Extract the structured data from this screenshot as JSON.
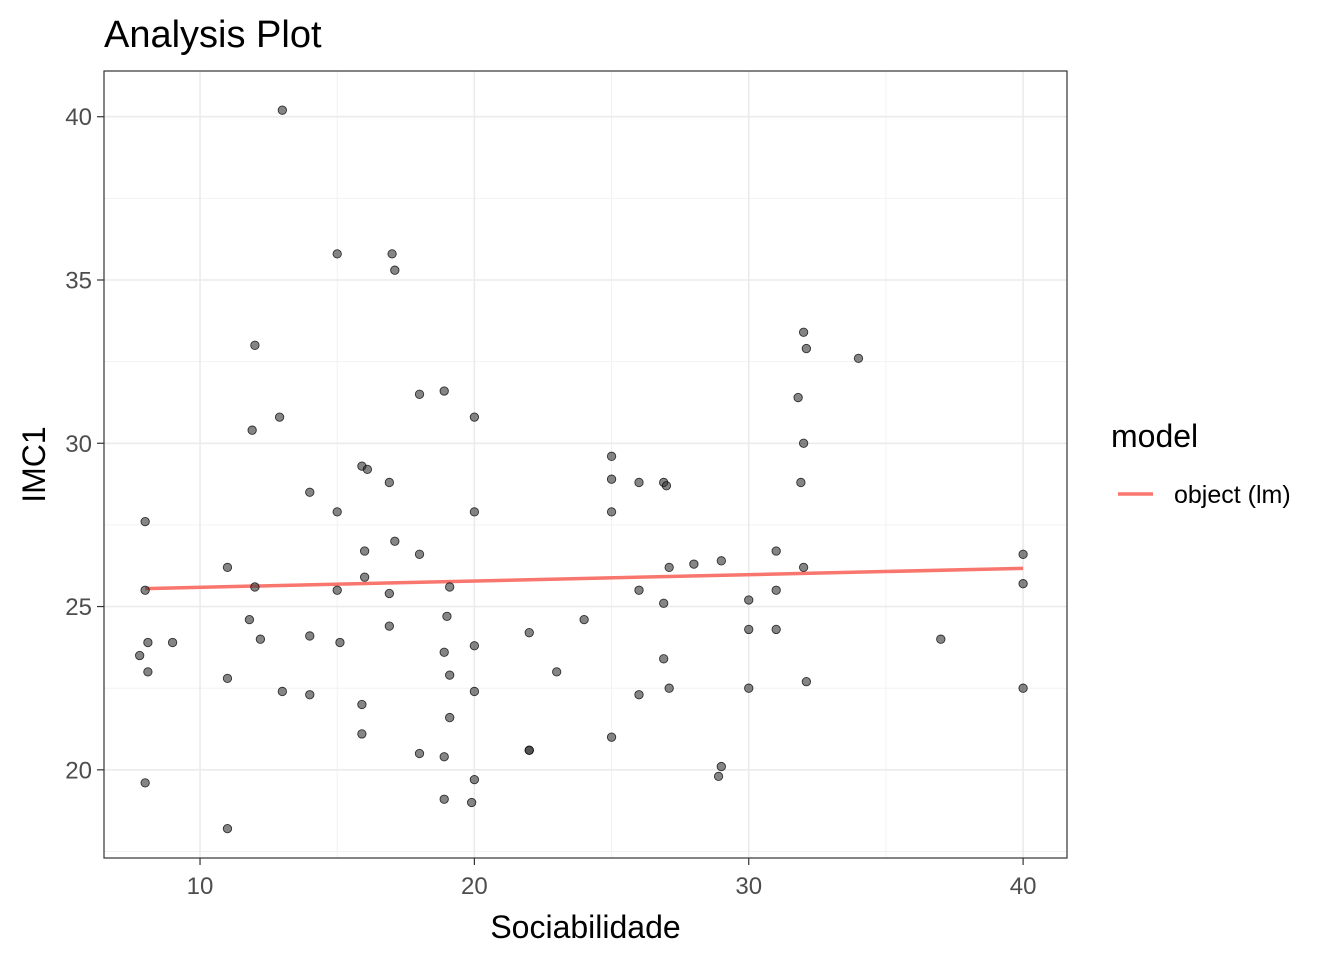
{
  "chart_data": {
    "type": "scatter",
    "title": "Analysis Plot",
    "xlabel": "Sociabilidade",
    "ylabel": "IMC1",
    "xlim": [
      6.5,
      41.6
    ],
    "ylim": [
      17.3,
      41.4
    ],
    "x_ticks": [
      10,
      20,
      30,
      40
    ],
    "y_ticks": [
      20,
      25,
      30,
      35,
      40
    ],
    "x_tick_labels": [
      "10",
      "20",
      "30",
      "40"
    ],
    "y_tick_labels": [
      "20",
      "25",
      "30",
      "35",
      "40"
    ],
    "grid": true,
    "legend": {
      "title": "model",
      "placement": "right",
      "entries": [
        {
          "label": "object (lm)",
          "color": "#F8766D"
        }
      ]
    },
    "point_color": "#333333",
    "points": [
      {
        "x": 7.8,
        "y": 23.5
      },
      {
        "x": 8.0,
        "y": 27.6
      },
      {
        "x": 8.0,
        "y": 25.5
      },
      {
        "x": 8.1,
        "y": 23.9
      },
      {
        "x": 8.1,
        "y": 23.0
      },
      {
        "x": 8.0,
        "y": 19.6
      },
      {
        "x": 9.0,
        "y": 23.9
      },
      {
        "x": 11.0,
        "y": 26.2
      },
      {
        "x": 11.0,
        "y": 22.8
      },
      {
        "x": 11.0,
        "y": 18.2
      },
      {
        "x": 11.8,
        "y": 24.6
      },
      {
        "x": 11.9,
        "y": 30.4
      },
      {
        "x": 12.0,
        "y": 33.0
      },
      {
        "x": 12.0,
        "y": 25.6
      },
      {
        "x": 12.2,
        "y": 24.0
      },
      {
        "x": 13.0,
        "y": 40.2
      },
      {
        "x": 12.9,
        "y": 30.8
      },
      {
        "x": 13.0,
        "y": 22.4
      },
      {
        "x": 14.0,
        "y": 28.5
      },
      {
        "x": 14.0,
        "y": 24.1
      },
      {
        "x": 14.0,
        "y": 22.3
      },
      {
        "x": 15.0,
        "y": 35.8
      },
      {
        "x": 15.0,
        "y": 27.9
      },
      {
        "x": 15.0,
        "y": 25.5
      },
      {
        "x": 15.1,
        "y": 23.9
      },
      {
        "x": 15.9,
        "y": 29.3
      },
      {
        "x": 16.1,
        "y": 29.2
      },
      {
        "x": 16.0,
        "y": 26.7
      },
      {
        "x": 16.0,
        "y": 25.9
      },
      {
        "x": 15.9,
        "y": 22.0
      },
      {
        "x": 15.9,
        "y": 21.1
      },
      {
        "x": 17.0,
        "y": 35.8
      },
      {
        "x": 17.1,
        "y": 35.3
      },
      {
        "x": 16.9,
        "y": 28.8
      },
      {
        "x": 17.1,
        "y": 27.0
      },
      {
        "x": 16.9,
        "y": 25.4
      },
      {
        "x": 16.9,
        "y": 24.4
      },
      {
        "x": 18.0,
        "y": 31.5
      },
      {
        "x": 18.0,
        "y": 26.6
      },
      {
        "x": 18.0,
        "y": 20.5
      },
      {
        "x": 18.9,
        "y": 31.6
      },
      {
        "x": 19.1,
        "y": 25.6
      },
      {
        "x": 19.0,
        "y": 24.7
      },
      {
        "x": 18.9,
        "y": 23.6
      },
      {
        "x": 19.1,
        "y": 22.9
      },
      {
        "x": 19.1,
        "y": 21.6
      },
      {
        "x": 18.9,
        "y": 20.4
      },
      {
        "x": 18.9,
        "y": 19.1
      },
      {
        "x": 20.0,
        "y": 30.8
      },
      {
        "x": 20.0,
        "y": 27.9
      },
      {
        "x": 20.0,
        "y": 23.8
      },
      {
        "x": 20.0,
        "y": 22.4
      },
      {
        "x": 20.0,
        "y": 19.7
      },
      {
        "x": 19.9,
        "y": 19.0
      },
      {
        "x": 22.0,
        "y": 24.2
      },
      {
        "x": 22.0,
        "y": 20.6
      },
      {
        "x": 22.0,
        "y": 20.6
      },
      {
        "x": 23.0,
        "y": 23.0
      },
      {
        "x": 24.0,
        "y": 24.6
      },
      {
        "x": 25.0,
        "y": 29.6
      },
      {
        "x": 25.0,
        "y": 28.9
      },
      {
        "x": 25.0,
        "y": 27.9
      },
      {
        "x": 25.0,
        "y": 21.0
      },
      {
        "x": 26.0,
        "y": 28.8
      },
      {
        "x": 26.0,
        "y": 25.5
      },
      {
        "x": 26.0,
        "y": 22.3
      },
      {
        "x": 26.9,
        "y": 28.8
      },
      {
        "x": 27.0,
        "y": 28.7
      },
      {
        "x": 27.1,
        "y": 26.2
      },
      {
        "x": 26.9,
        "y": 25.1
      },
      {
        "x": 26.9,
        "y": 23.4
      },
      {
        "x": 27.1,
        "y": 22.5
      },
      {
        "x": 28.0,
        "y": 26.3
      },
      {
        "x": 29.0,
        "y": 26.4
      },
      {
        "x": 29.0,
        "y": 20.1
      },
      {
        "x": 28.9,
        "y": 19.8
      },
      {
        "x": 30.0,
        "y": 25.2
      },
      {
        "x": 30.0,
        "y": 24.3
      },
      {
        "x": 30.0,
        "y": 22.5
      },
      {
        "x": 31.0,
        "y": 26.7
      },
      {
        "x": 31.0,
        "y": 25.5
      },
      {
        "x": 31.0,
        "y": 24.3
      },
      {
        "x": 31.8,
        "y": 31.4
      },
      {
        "x": 31.9,
        "y": 28.8
      },
      {
        "x": 32.0,
        "y": 33.4
      },
      {
        "x": 32.0,
        "y": 30.0
      },
      {
        "x": 32.1,
        "y": 32.9
      },
      {
        "x": 32.0,
        "y": 26.2
      },
      {
        "x": 32.1,
        "y": 22.7
      },
      {
        "x": 34.0,
        "y": 32.6
      },
      {
        "x": 37.0,
        "y": 24.0
      },
      {
        "x": 40.0,
        "y": 26.6
      },
      {
        "x": 40.0,
        "y": 25.7
      },
      {
        "x": 40.0,
        "y": 22.5
      }
    ],
    "series": [
      {
        "name": "object (lm)",
        "type": "line",
        "color": "#F8766D",
        "x": [
          8.0,
          40.0
        ],
        "y": [
          25.55,
          26.17
        ]
      }
    ]
  }
}
